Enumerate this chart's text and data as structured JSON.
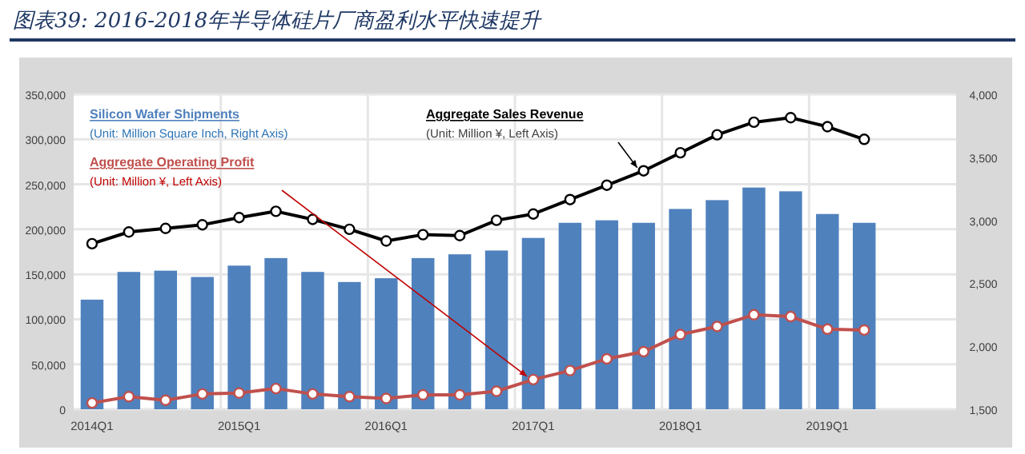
{
  "chart_data": {
    "type": "bar",
    "title": "图表39: 2016-2018年半导体硅片厂商盈利水平快速提升",
    "categories": [
      "2014Q1",
      null,
      null,
      null,
      "2015Q1",
      null,
      null,
      null,
      "2016Q1",
      null,
      null,
      null,
      "2017Q1",
      null,
      null,
      null,
      "2018Q1",
      null,
      null,
      null,
      "2019Q1",
      null,
      null,
      null
    ],
    "series": [
      {
        "name": "Silicon Wafer Shipments",
        "axis": "y2",
        "color": "#4f81bd",
        "values": [
          2370,
          2590,
          2600,
          2550,
          2640,
          2700,
          2590,
          2510,
          2540,
          2700,
          2730,
          2760,
          2860,
          2980,
          3000,
          2980,
          3090,
          3160,
          3260,
          3230,
          3050,
          2980,
          null,
          null
        ]
      },
      {
        "name": "Aggregate Sales Revenue",
        "type": "line",
        "color": "#000000",
        "values": [
          184000,
          197000,
          201000,
          205000,
          213000,
          220000,
          211000,
          200000,
          187000,
          194000,
          193000,
          210000,
          217000,
          233000,
          249000,
          265000,
          285000,
          305000,
          319000,
          324000,
          314000,
          300000,
          null,
          null
        ]
      },
      {
        "name": "Aggregate Operating Profit",
        "type": "line",
        "color": "#c0504d",
        "values": [
          7000,
          14000,
          10000,
          17000,
          18000,
          23000,
          17000,
          14000,
          12000,
          16000,
          16000,
          20000,
          33000,
          43000,
          56000,
          64000,
          83000,
          92000,
          105000,
          103000,
          89000,
          88000,
          null,
          null
        ]
      }
    ],
    "annotations": [
      "(Unit: Million Square Inch, Right Axis)",
      "(Unit: Million ¥, Left Axis)",
      "(Unit: Million ¥, Left Axis)"
    ],
    "marker": "circle",
    "grid": true,
    "ylim": [
      0,
      350000
    ],
    "yticks": [
      {
        "value": 0,
        "label": "0"
      },
      {
        "value": 50000,
        "label": "50,000"
      },
      {
        "value": 100000,
        "label": "100,000"
      },
      {
        "value": 150000,
        "label": "150,000"
      },
      {
        "value": 200000,
        "label": "200,000"
      },
      {
        "value": 250000,
        "label": "250,000"
      },
      {
        "value": 300000,
        "label": "300,000"
      },
      {
        "value": 350000,
        "label": "350,000"
      }
    ],
    "y2lim": [
      1500,
      4000
    ],
    "y2ticks": [
      {
        "value": 1500,
        "label": "1,500"
      },
      {
        "value": 2000,
        "label": "2,000"
      },
      {
        "value": 2500,
        "label": "2,500"
      },
      {
        "value": 3000,
        "label": "3,000"
      },
      {
        "value": 3500,
        "label": "3,500"
      },
      {
        "value": 4000,
        "label": "4,000"
      }
    ]
  }
}
